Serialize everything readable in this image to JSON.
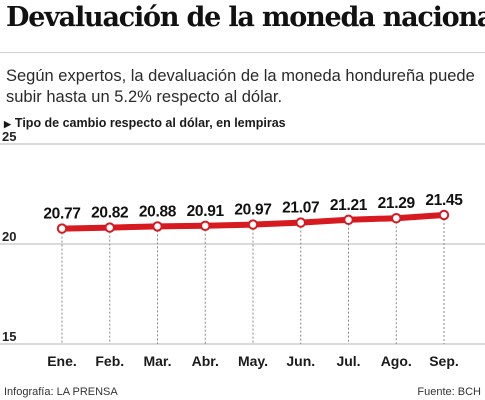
{
  "header": {
    "title": "Devaluación de la moneda nacional",
    "subtitle": "Según expertos, la devaluación de la moneda hondureña puede subir hasta un 5.2% respecto al dólar.",
    "unit_label": "Tipo de cambio respecto al dólar, en lempiras"
  },
  "chart_data": {
    "type": "line",
    "categories": [
      "Ene.",
      "Feb.",
      "Mar.",
      "Abr.",
      "May.",
      "Jun.",
      "Jul.",
      "Ago.",
      "Sep."
    ],
    "values": [
      20.77,
      20.82,
      20.88,
      20.91,
      20.97,
      21.07,
      21.21,
      21.29,
      21.45
    ],
    "data_labels": [
      "20.77",
      "20.82",
      "20.88",
      "20.91",
      "20.97",
      "21.07",
      "21.21",
      "21.29",
      "21.45"
    ],
    "yticks": [
      25,
      20,
      15
    ],
    "ylim": [
      15,
      25
    ],
    "grid": "horizontal lines at y ticks, dotted vertical drop lines from each point",
    "line_color": "#d71920",
    "point_fill": "#ffffff"
  },
  "footer": {
    "credit": "Infografía: LA PRENSA",
    "source": "Fuente: BCH"
  }
}
